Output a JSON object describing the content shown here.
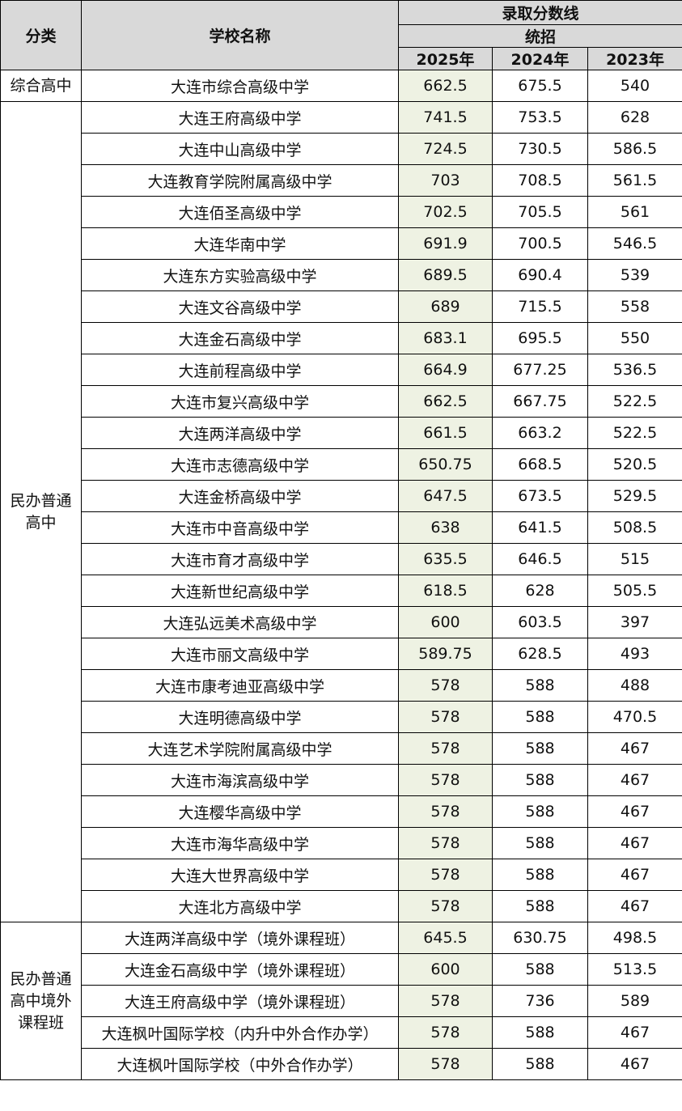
{
  "header": {
    "category": "分类",
    "school": "学校名称",
    "score_line": "录取分数线",
    "type": "统招",
    "years": [
      "2025年",
      "2024年",
      "2023年"
    ]
  },
  "colors": {
    "header_bg": "#d9d9d9",
    "highlight_2025": "#eef2e3"
  },
  "groups": [
    {
      "category": "综合高中",
      "rows": [
        [
          "大连市综合高级中学",
          "662.5",
          "675.5",
          "540"
        ]
      ]
    },
    {
      "category": "民办普通高中",
      "rows": [
        [
          "大连王府高级中学",
          "741.5",
          "753.5",
          "628"
        ],
        [
          "大连中山高级中学",
          "724.5",
          "730.5",
          "586.5"
        ],
        [
          "大连教育学院附属高级中学",
          "703",
          "708.5",
          "561.5"
        ],
        [
          "大连佰圣高级中学",
          "702.5",
          "705.5",
          "561"
        ],
        [
          "大连华南中学",
          "691.9",
          "700.5",
          "546.5"
        ],
        [
          "大连东方实验高级中学",
          "689.5",
          "690.4",
          "539"
        ],
        [
          "大连文谷高级中学",
          "689",
          "715.5",
          "558"
        ],
        [
          "大连金石高级中学",
          "683.1",
          "695.5",
          "550"
        ],
        [
          "大连前程高级中学",
          "664.9",
          "677.25",
          "536.5"
        ],
        [
          "大连市复兴高级中学",
          "662.5",
          "667.75",
          "522.5"
        ],
        [
          "大连两洋高级中学",
          "661.5",
          "663.2",
          "522.5"
        ],
        [
          "大连市志德高级中学",
          "650.75",
          "668.5",
          "520.5"
        ],
        [
          "大连金桥高级中学",
          "647.5",
          "673.5",
          "529.5"
        ],
        [
          "大连市中音高级中学",
          "638",
          "641.5",
          "508.5"
        ],
        [
          "大连市育才高级中学",
          "635.5",
          "646.5",
          "515"
        ],
        [
          "大连新世纪高级中学",
          "618.5",
          "628",
          "505.5"
        ],
        [
          "大连弘远美术高级中学",
          "600",
          "603.5",
          "397"
        ],
        [
          "大连市丽文高级中学",
          "589.75",
          "628.5",
          "493"
        ],
        [
          "大连市康考迪亚高级中学",
          "578",
          "588",
          "488"
        ],
        [
          "大连明德高级中学",
          "578",
          "588",
          "470.5"
        ],
        [
          "大连艺术学院附属高级中学",
          "578",
          "588",
          "467"
        ],
        [
          "大连市海滨高级中学",
          "578",
          "588",
          "467"
        ],
        [
          "大连樱华高级中学",
          "578",
          "588",
          "467"
        ],
        [
          "大连市海华高级中学",
          "578",
          "588",
          "467"
        ],
        [
          "大连大世界高级中学",
          "578",
          "588",
          "467"
        ],
        [
          "大连北方高级中学",
          "578",
          "588",
          "467"
        ]
      ]
    },
    {
      "category": "民办普通高中境外课程班",
      "rows": [
        [
          "大连两洋高级中学（境外课程班）",
          "645.5",
          "630.75",
          "498.5"
        ],
        [
          "大连金石高级中学（境外课程班）",
          "600",
          "588",
          "513.5"
        ],
        [
          "大连王府高级中学（境外课程班）",
          "578",
          "736",
          "589"
        ],
        [
          "大连枫叶国际学校（内升中外合作办学）",
          "578",
          "588",
          "467"
        ],
        [
          "大连枫叶国际学校（中外合作办学）",
          "578",
          "588",
          "467"
        ]
      ]
    }
  ]
}
